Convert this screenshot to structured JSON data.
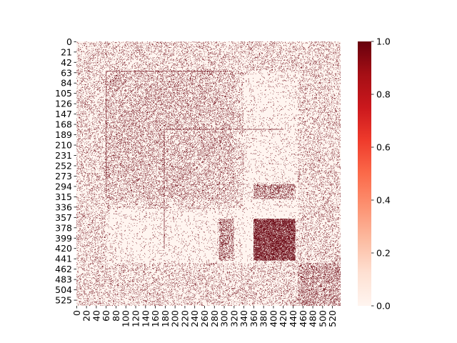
{
  "chart_data": {
    "type": "heatmap",
    "title": "",
    "xlabel": "",
    "ylabel": "",
    "n_rows": 537,
    "n_cols": 537,
    "value_range": [
      0,
      1
    ],
    "xtick_labels": [
      "0",
      "20",
      "40",
      "60",
      "80",
      "100",
      "120",
      "140",
      "160",
      "180",
      "200",
      "220",
      "240",
      "260",
      "280",
      "300",
      "320",
      "340",
      "360",
      "380",
      "400",
      "420",
      "440",
      "460",
      "480",
      "500",
      "520"
    ],
    "xtick_values": [
      0,
      20,
      40,
      60,
      80,
      100,
      120,
      140,
      160,
      180,
      200,
      220,
      240,
      260,
      280,
      300,
      320,
      340,
      360,
      380,
      400,
      420,
      440,
      460,
      480,
      500,
      520
    ],
    "ytick_labels": [
      "0",
      "21",
      "42",
      "63",
      "84",
      "105",
      "126",
      "147",
      "168",
      "189",
      "210",
      "231",
      "252",
      "273",
      "294",
      "315",
      "336",
      "357",
      "378",
      "399",
      "420",
      "441",
      "462",
      "483",
      "504",
      "525"
    ],
    "ytick_values": [
      0,
      21,
      42,
      63,
      84,
      105,
      126,
      147,
      168,
      189,
      210,
      231,
      252,
      273,
      294,
      315,
      336,
      357,
      378,
      399,
      420,
      441,
      462,
      483,
      504,
      525
    ],
    "colorbar": {
      "ticks": [
        "0.0",
        "0.2",
        "0.4",
        "0.6",
        "0.8",
        "1.0"
      ],
      "tick_values": [
        0.0,
        0.2,
        0.4,
        0.6,
        0.8,
        1.0
      ],
      "colormap": "Reds",
      "low_color": "#fff5f0",
      "high_color": "#67000d"
    },
    "structure": {
      "background_density": 0.12,
      "lines": [
        {
          "orientation": "horizontal",
          "index": 60,
          "from": 60,
          "to": 315,
          "density": 0.85
        },
        {
          "orientation": "vertical",
          "index": 60,
          "from": 60,
          "to": 315,
          "density": 0.85
        },
        {
          "orientation": "horizontal",
          "index": 178,
          "from": 178,
          "to": 420,
          "density": 0.8
        },
        {
          "orientation": "vertical",
          "index": 178,
          "from": 178,
          "to": 420,
          "density": 0.8
        }
      ],
      "blocks": [
        {
          "rows": [
            360,
            445
          ],
          "cols": [
            360,
            445
          ],
          "density": 0.7
        },
        {
          "rows": [
            360,
            445
          ],
          "cols": [
            290,
            320
          ],
          "density": 0.3
        },
        {
          "rows": [
            290,
            300
          ],
          "cols": [
            360,
            445
          ],
          "density": 0.4
        },
        {
          "rows": [
            60,
            320
          ],
          "cols": [
            60,
            320
          ],
          "density": 0.18
        },
        {
          "rows": [
            450,
            537
          ],
          "cols": [
            450,
            537
          ],
          "density": 0.28
        }
      ],
      "sparse_regions": [
        {
          "rows": [
            60,
            360
          ],
          "cols": [
            340,
            450
          ],
          "density": 0.04
        },
        {
          "rows": [
            340,
            450
          ],
          "cols": [
            340,
            360
          ],
          "density": 0.02
        }
      ]
    }
  }
}
